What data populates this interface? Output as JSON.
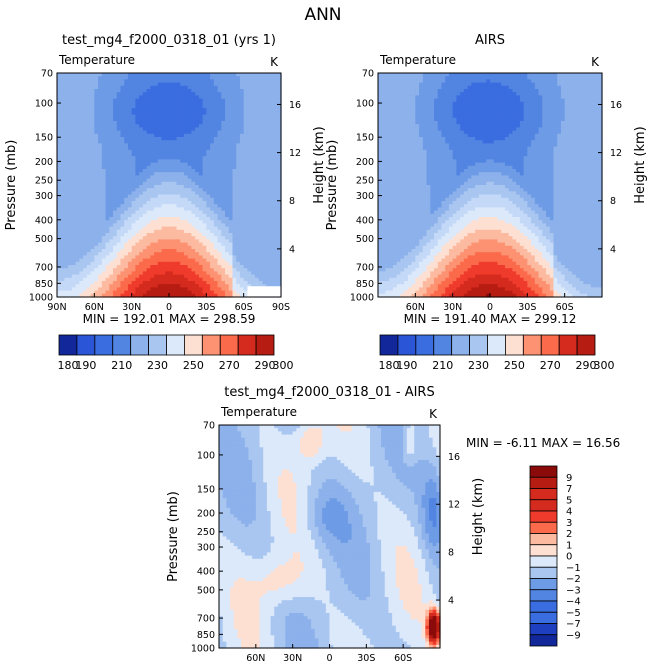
{
  "page_title": "ANN",
  "colors": {
    "warm": [
      "#fee0d2",
      "#fcbba1",
      "#fc9272",
      "#fb6a4a",
      "#ef3b2c",
      "#d52a1e",
      "#b71c12",
      "#8b0a0a"
    ],
    "cool": [
      "#dce9fb",
      "#c4d9f7",
      "#a9c6f1",
      "#8cb1eb",
      "#6e9be6",
      "#5284e1",
      "#3a6de0",
      "#2a55d6",
      "#1e3fbf",
      "#12289a"
    ],
    "land_mask": "#ffffff"
  },
  "chart_data": [
    {
      "id": "model",
      "type": "contour",
      "title": "test_mg4_f2000_0318_01 (yrs 1)",
      "variable": "Temperature",
      "units": "K",
      "ylabel": "Pressure (mb)",
      "y2label": "Height (km)",
      "x_tick_labels": [
        "90N",
        "60N",
        "30N",
        "0",
        "30S",
        "60S",
        "90S"
      ],
      "x_tick_values": [
        90,
        60,
        30,
        0,
        -30,
        -60,
        -90
      ],
      "xlim": [
        90,
        -90
      ],
      "y_tick_labels": [
        "70",
        "100",
        "150",
        "200",
        "250",
        "300",
        "400",
        "500",
        "700",
        "850",
        "1000"
      ],
      "y_tick_values": [
        70,
        100,
        150,
        200,
        250,
        300,
        400,
        500,
        700,
        850,
        1000
      ],
      "ylim": [
        70,
        1000
      ],
      "y2_tick_labels": [
        "16",
        "12",
        "8",
        "4"
      ],
      "y2_tick_values": [
        16,
        12,
        8,
        4
      ],
      "min": "192.01",
      "max": "298.59",
      "stats": "MIN = 192.01   MAX = 298.59",
      "field": "temperature",
      "has_land_mask": true,
      "colorbar": {
        "orientation": "horizontal",
        "levels": [
          180,
          190,
          200,
          210,
          220,
          230,
          240,
          250,
          260,
          270,
          280,
          290,
          300
        ],
        "tick_labels": [
          "180",
          "190",
          "210",
          "230",
          "250",
          "270",
          "290",
          "300"
        ]
      }
    },
    {
      "id": "obs",
      "type": "contour",
      "title": "AIRS",
      "variable": "Temperature",
      "units": "K",
      "ylabel": "Pressure (mb)",
      "y2label": "Height (km)",
      "x_tick_labels": [
        "60N",
        "30N",
        "0",
        "30S",
        "60S"
      ],
      "x_tick_values": [
        60,
        30,
        0,
        -30,
        -60
      ],
      "xlim": [
        90,
        -90
      ],
      "y_tick_labels": [
        "70",
        "100",
        "150",
        "200",
        "250",
        "300",
        "400",
        "500",
        "700",
        "850",
        "1000"
      ],
      "y_tick_values": [
        70,
        100,
        150,
        200,
        250,
        300,
        400,
        500,
        700,
        850,
        1000
      ],
      "ylim": [
        70,
        1000
      ],
      "y2_tick_labels": [
        "16",
        "12",
        "8",
        "4"
      ],
      "y2_tick_values": [
        16,
        12,
        8,
        4
      ],
      "min": "191.40",
      "max": "299.12",
      "stats": "MIN = 191.40   MAX = 299.12",
      "field": "temperature",
      "has_land_mask": false,
      "colorbar": {
        "orientation": "horizontal",
        "levels": [
          180,
          190,
          200,
          210,
          220,
          230,
          240,
          250,
          260,
          270,
          280,
          290,
          300
        ],
        "tick_labels": [
          "180",
          "190",
          "210",
          "230",
          "250",
          "270",
          "290",
          "300"
        ]
      }
    },
    {
      "id": "diff",
      "type": "contour",
      "title": "test_mg4_f2000_0318_01 - AIRS",
      "variable": "Temperature",
      "units": "K",
      "ylabel": "Pressure (mb)",
      "y2label": "Height (km)",
      "x_tick_labels": [
        "60N",
        "30N",
        "0",
        "30S",
        "60S"
      ],
      "x_tick_values": [
        60,
        30,
        0,
        -30,
        -60
      ],
      "xlim": [
        90,
        -90
      ],
      "y_tick_labels": [
        "70",
        "100",
        "150",
        "200",
        "250",
        "300",
        "400",
        "500",
        "700",
        "850",
        "1000"
      ],
      "y_tick_values": [
        70,
        100,
        150,
        200,
        250,
        300,
        400,
        500,
        700,
        850,
        1000
      ],
      "ylim": [
        70,
        1000
      ],
      "y2_tick_labels": [
        "16",
        "12",
        "8",
        "4"
      ],
      "y2_tick_values": [
        16,
        12,
        8,
        4
      ],
      "min": "-6.11",
      "max": "16.56",
      "stats": "MIN =   -6.11    MAX =   16.56",
      "field": "difference",
      "has_land_mask": false,
      "colorbar": {
        "orientation": "vertical",
        "levels": [
          -9,
          -7,
          -5,
          -4,
          -3,
          -2,
          -1,
          0,
          1,
          2,
          3,
          4,
          5,
          7,
          9
        ],
        "tick_labels": [
          "9",
          "7",
          "5",
          "4",
          "3",
          "2",
          "1",
          "0",
          "−1",
          "−2",
          "−3",
          "−4",
          "−5",
          "−7",
          "−9"
        ]
      }
    }
  ]
}
